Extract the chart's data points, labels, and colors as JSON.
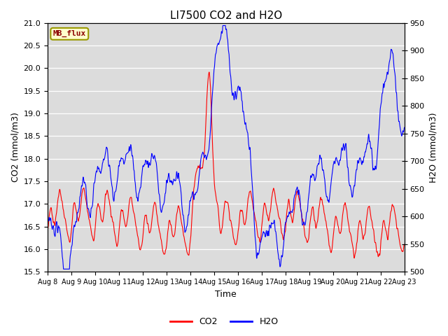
{
  "title": "LI7500 CO2 and H2O",
  "xlabel": "Time",
  "ylabel_left": "CO2 (mmol/m3)",
  "ylabel_right": "H2O (mmol/m3)",
  "annotation": "MB_flux",
  "co2_ylim": [
    15.5,
    21.0
  ],
  "h2o_ylim": [
    500,
    950
  ],
  "co2_color": "#ff0000",
  "h2o_color": "#0000ff",
  "plot_bg_color": "#dcdcdc",
  "x_tick_labels": [
    "Aug 8",
    "Aug 9",
    "Aug 10",
    "Aug 11",
    "Aug 12",
    "Aug 13",
    "Aug 14",
    "Aug 15",
    "Aug 16",
    "Aug 17",
    "Aug 18",
    "Aug 19",
    "Aug 20",
    "Aug 21",
    "Aug 22",
    "Aug 23"
  ],
  "co2_yticks": [
    15.5,
    16.0,
    16.5,
    17.0,
    17.5,
    18.0,
    18.5,
    19.0,
    19.5,
    20.0,
    20.5,
    21.0
  ],
  "h2o_yticks": [
    500,
    550,
    600,
    650,
    700,
    750,
    800,
    850,
    900,
    950
  ],
  "n_days": 15,
  "n_points": 2160,
  "seed": 7
}
